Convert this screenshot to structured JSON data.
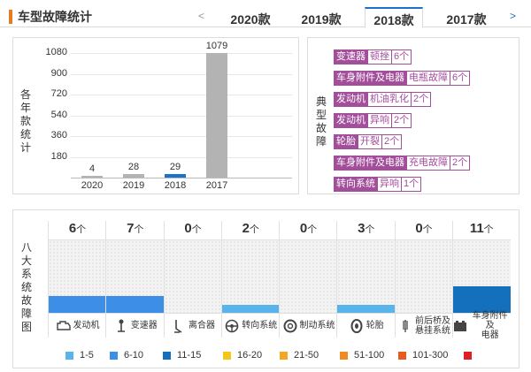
{
  "header": {
    "title": "车型故障统计",
    "prev_arrow": "<",
    "next_arrow": ">",
    "tabs": [
      {
        "label": "2020款",
        "active": false
      },
      {
        "label": "2019款",
        "active": false
      },
      {
        "label": "2018款",
        "active": true
      },
      {
        "label": "2017款",
        "active": false
      }
    ]
  },
  "chart_data": {
    "type": "bar",
    "ylabel": "各年款统计",
    "categories": [
      "2020",
      "2019",
      "2018",
      "2017"
    ],
    "values": [
      4,
      28,
      29,
      1079
    ],
    "data_labels": [
      "4",
      "28",
      "29",
      "1079"
    ],
    "yticks": [
      "1080",
      "900",
      "720",
      "540",
      "360",
      "180"
    ],
    "ylim": [
      0,
      1080
    ],
    "colors": [
      "#b3b3b3",
      "#b3b3b3",
      "#1a73c8",
      "#b3b3b3"
    ],
    "grid": true
  },
  "faults": {
    "label": "典型故障",
    "items": [
      {
        "category": "变速器",
        "detail": "顿挫",
        "count": "6个"
      },
      {
        "category": "车身附件及电器",
        "detail": "电瓶故障",
        "count": "6个"
      },
      {
        "category": "发动机",
        "detail": "机油乳化",
        "count": "2个"
      },
      {
        "category": "发动机",
        "detail": "异响",
        "count": "2个"
      },
      {
        "category": "轮胎",
        "detail": "开裂",
        "count": "2个"
      },
      {
        "category": "车身附件及电器",
        "detail": "充电故障",
        "count": "2个"
      },
      {
        "category": "转向系统",
        "detail": "异响",
        "count": "1个"
      }
    ]
  },
  "systems": {
    "label": "八大系统故障图",
    "unit": "个",
    "items": [
      {
        "count": "6",
        "level": 0.23,
        "color": "#3d8ee6",
        "name": "发动机",
        "icon": "engine-icon"
      },
      {
        "count": "7",
        "level": 0.23,
        "color": "#3d8ee6",
        "name": "变速器",
        "icon": "gear-shift-icon"
      },
      {
        "count": "0",
        "level": 0,
        "color": "#3d8ee6",
        "name": "离合器",
        "icon": "clutch-pedal-icon"
      },
      {
        "count": "2",
        "level": 0.11,
        "color": "#5ab4ec",
        "name": "转向系统",
        "icon": "steering-wheel-icon"
      },
      {
        "count": "0",
        "level": 0,
        "color": "#3d8ee6",
        "name": "制动系统",
        "icon": "brake-disc-icon"
      },
      {
        "count": "3",
        "level": 0.11,
        "color": "#5ab4ec",
        "name": "轮胎",
        "icon": "tire-icon"
      },
      {
        "count": "0",
        "level": 0,
        "color": "#3d8ee6",
        "name": "前后桥及悬挂系统",
        "icon": "suspension-icon"
      },
      {
        "count": "11",
        "level": 0.36,
        "color": "#1470bd",
        "name": "车身附件及电器",
        "icon": "battery-icon"
      }
    ]
  },
  "legend": [
    {
      "label": "1-5",
      "color": "#5ab4ec"
    },
    {
      "label": "6-10",
      "color": "#3d8ee6"
    },
    {
      "label": "11-15",
      "color": "#1470bd"
    },
    {
      "label": "16-20",
      "color": "#f5c518"
    },
    {
      "label": "21-50",
      "color": "#f5a623"
    },
    {
      "label": "51-100",
      "color": "#f08a24"
    },
    {
      "label": "101-300",
      "color": "#e85d1e"
    },
    {
      "label": "",
      "color": "#e02020"
    }
  ]
}
